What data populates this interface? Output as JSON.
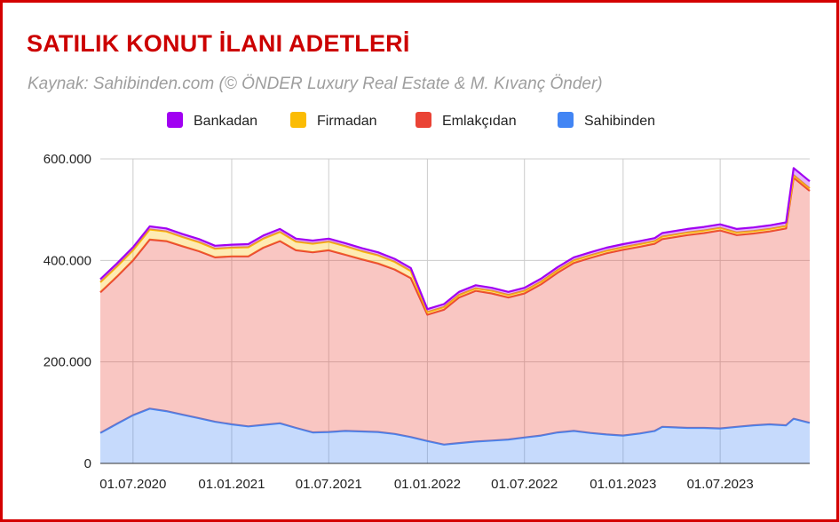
{
  "title": "SATILIK KONUT İLANI ADETLERİ",
  "subtitle": "Kaynak: Sahibinden.com (© ÖNDER Luxury Real Estate & M. Kıvanç Önder)",
  "colors": {
    "Bankadan": "#a100f2",
    "Firmadan": "#fbbc04",
    "Emlakçıdan": "#ea4335",
    "Sahibinden": "#4285f4",
    "frame": "#d40000",
    "title": "#cc0000"
  },
  "chart_data": {
    "type": "area",
    "stacked": true,
    "title": "SATILIK KONUT İLANI ADETLERİ",
    "subtitle": "Kaynak: Sahibinden.com (© ÖNDER Luxury Real Estate & M. Kıvanç Önder)",
    "xlabel": "",
    "ylabel": "",
    "ylim": [
      0,
      600000
    ],
    "y_ticks": [
      "0",
      "200.000",
      "400.000",
      "600.000"
    ],
    "y_tick_values": [
      0,
      200000,
      400000,
      600000
    ],
    "x_ticks": [
      "01.07.2020",
      "01.01.2021",
      "01.07.2021",
      "01.01.2022",
      "01.07.2022",
      "01.01.2023",
      "01.07.2023"
    ],
    "x_tick_dates": [
      "2020-07-01",
      "2021-01-01",
      "2021-07-01",
      "2022-01-01",
      "2022-07-01",
      "2023-01-01",
      "2023-07-01"
    ],
    "x_range": [
      "2020-05-01",
      "2023-12-15"
    ],
    "legend_position": "top",
    "grid": true,
    "x": [
      "2020-05-01",
      "2020-06-01",
      "2020-07-01",
      "2020-08-01",
      "2020-09-01",
      "2020-10-01",
      "2020-11-01",
      "2020-12-01",
      "2021-01-01",
      "2021-02-01",
      "2021-03-01",
      "2021-04-01",
      "2021-05-01",
      "2021-06-01",
      "2021-07-01",
      "2021-08-01",
      "2021-09-01",
      "2021-10-01",
      "2021-11-01",
      "2021-12-01",
      "2022-01-01",
      "2022-02-01",
      "2022-03-01",
      "2022-04-01",
      "2022-05-01",
      "2022-06-01",
      "2022-07-01",
      "2022-08-01",
      "2022-09-01",
      "2022-10-01",
      "2022-11-01",
      "2022-12-01",
      "2023-01-01",
      "2023-02-01",
      "2023-03-01",
      "2023-03-15",
      "2023-05-01",
      "2023-06-01",
      "2023-07-01",
      "2023-08-01",
      "2023-09-01",
      "2023-10-01",
      "2023-11-01",
      "2023-11-15",
      "2023-12-15"
    ],
    "series": [
      {
        "name": "Sahibinden",
        "values": [
          60000,
          78000,
          95000,
          108000,
          103000,
          96000,
          89000,
          82000,
          77000,
          73000,
          76000,
          79000,
          70000,
          61000,
          62000,
          64000,
          63000,
          62000,
          58000,
          52000,
          44000,
          37000,
          40000,
          43000,
          45000,
          47000,
          51000,
          55000,
          61000,
          64000,
          60000,
          57000,
          55000,
          59000,
          64000,
          72000,
          70000,
          70000,
          69000,
          72000,
          75000,
          77000,
          75000,
          88000,
          80000
        ]
      },
      {
        "name": "Emlakçıdan",
        "values": [
          277000,
          290000,
          305000,
          333000,
          335000,
          332000,
          329000,
          324000,
          331000,
          335000,
          349000,
          359000,
          350000,
          355000,
          358000,
          347000,
          339000,
          332000,
          324000,
          313000,
          249000,
          266000,
          287000,
          297000,
          290000,
          280000,
          284000,
          298000,
          315000,
          331000,
          345000,
          357000,
          366000,
          368000,
          369000,
          370000,
          380000,
          384000,
          390000,
          378000,
          378000,
          380000,
          388000,
          475000,
          457000
        ]
      },
      {
        "name": "Firmadan",
        "values": [
          20000,
          20000,
          20000,
          20000,
          19000,
          18000,
          18000,
          17000,
          17000,
          18000,
          18000,
          18000,
          17000,
          17000,
          17000,
          17000,
          16000,
          16000,
          15000,
          14000,
          5000,
          5000,
          5000,
          5000,
          5000,
          5000,
          5000,
          5000,
          5000,
          5000,
          5000,
          5000,
          5000,
          5000,
          5000,
          5000,
          5000,
          5000,
          5000,
          5000,
          5000,
          5000,
          5000,
          5000,
          5000
        ]
      },
      {
        "name": "Bankadan",
        "values": [
          6000,
          6000,
          6000,
          6000,
          6000,
          6000,
          6000,
          6000,
          6000,
          6000,
          6000,
          6000,
          6000,
          6000,
          6000,
          6000,
          6000,
          6000,
          6000,
          6000,
          6000,
          6000,
          6000,
          6000,
          6000,
          6000,
          6000,
          6000,
          6000,
          6000,
          6000,
          6000,
          6000,
          6000,
          6000,
          7000,
          7000,
          7000,
          7000,
          7000,
          7000,
          7000,
          7000,
          14000,
          14000
        ]
      }
    ]
  }
}
